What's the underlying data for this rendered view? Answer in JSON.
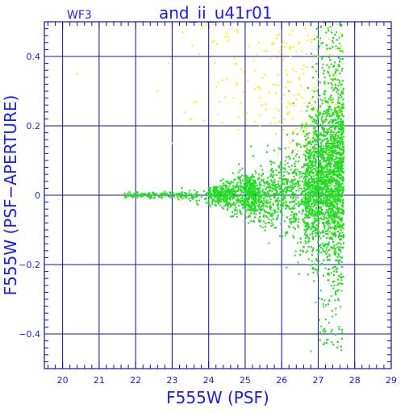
{
  "colors": {
    "frame": "#1010b0",
    "text": "#1a1aff",
    "primary_points": "#22dd22",
    "secondary_points": "#ffee00",
    "background": "#ffffff"
  },
  "chart_data": {
    "type": "scatter",
    "title": "and_ii_u41r01",
    "corner_label": "WF3",
    "xlabel": "F555W (PSF)",
    "ylabel": "F555W (PSF−APERTURE)",
    "xlim": [
      19.5,
      29
    ],
    "ylim": [
      -0.5,
      0.5
    ],
    "x_ticks": [
      20,
      21,
      22,
      23,
      24,
      25,
      26,
      27,
      28,
      29
    ],
    "y_ticks": [
      -0.4,
      -0.2,
      0,
      0.2,
      0.4
    ],
    "x_tick_labels": [
      "20",
      "21",
      "22",
      "23",
      "24",
      "25",
      "26",
      "27",
      "28",
      "29"
    ],
    "y_tick_labels": [
      "−0.4",
      "−0.2",
      "0",
      "0.2",
      "0.4"
    ],
    "grid": true,
    "legend": "none",
    "series": [
      {
        "color": "#22dd22",
        "approx_count": 6000,
        "points": [
          [
            21.7,
            0.005
          ],
          [
            22.0,
            0.0
          ],
          [
            22.4,
            -0.01
          ],
          [
            22.8,
            0.01
          ],
          [
            23.2,
            0.0
          ],
          [
            23.6,
            -0.005
          ],
          [
            24.0,
            0.01
          ],
          [
            24.4,
            0.02
          ],
          [
            24.8,
            -0.01
          ],
          [
            25.0,
            -0.02
          ],
          [
            25.2,
            0.03
          ],
          [
            25.6,
            0.04
          ],
          [
            26.0,
            0.05
          ],
          [
            26.4,
            0.06
          ],
          [
            26.8,
            0.08
          ],
          [
            27.0,
            0.05
          ],
          [
            27.2,
            0.1
          ],
          [
            27.4,
            0.2
          ],
          [
            27.0,
            -0.2
          ],
          [
            27.1,
            -0.3
          ],
          [
            27.2,
            -0.4
          ],
          [
            26.8,
            -0.45
          ],
          [
            26.9,
            0.45
          ],
          [
            27.5,
            0.47
          ],
          [
            26.2,
            0.3
          ],
          [
            25.8,
            -0.2
          ],
          [
            25.0,
            -0.18
          ]
        ]
      },
      {
        "color": "#ffee00",
        "approx_count": 250,
        "points": [
          [
            20.4,
            0.35
          ],
          [
            22.6,
            0.3
          ],
          [
            22.9,
            0.38
          ],
          [
            23.3,
            0.47
          ],
          [
            24.3,
            0.27
          ],
          [
            24.8,
            0.47
          ],
          [
            25.4,
            0.2
          ],
          [
            25.9,
            0.12
          ],
          [
            26.3,
            0.22
          ],
          [
            26.6,
            0.35
          ],
          [
            27.0,
            0.4
          ],
          [
            27.3,
            0.45
          ],
          [
            27.2,
            0.3
          ],
          [
            27.6,
            0.1
          ],
          [
            27.5,
            0.25
          ],
          [
            23.0,
            0.15
          ]
        ]
      }
    ]
  }
}
